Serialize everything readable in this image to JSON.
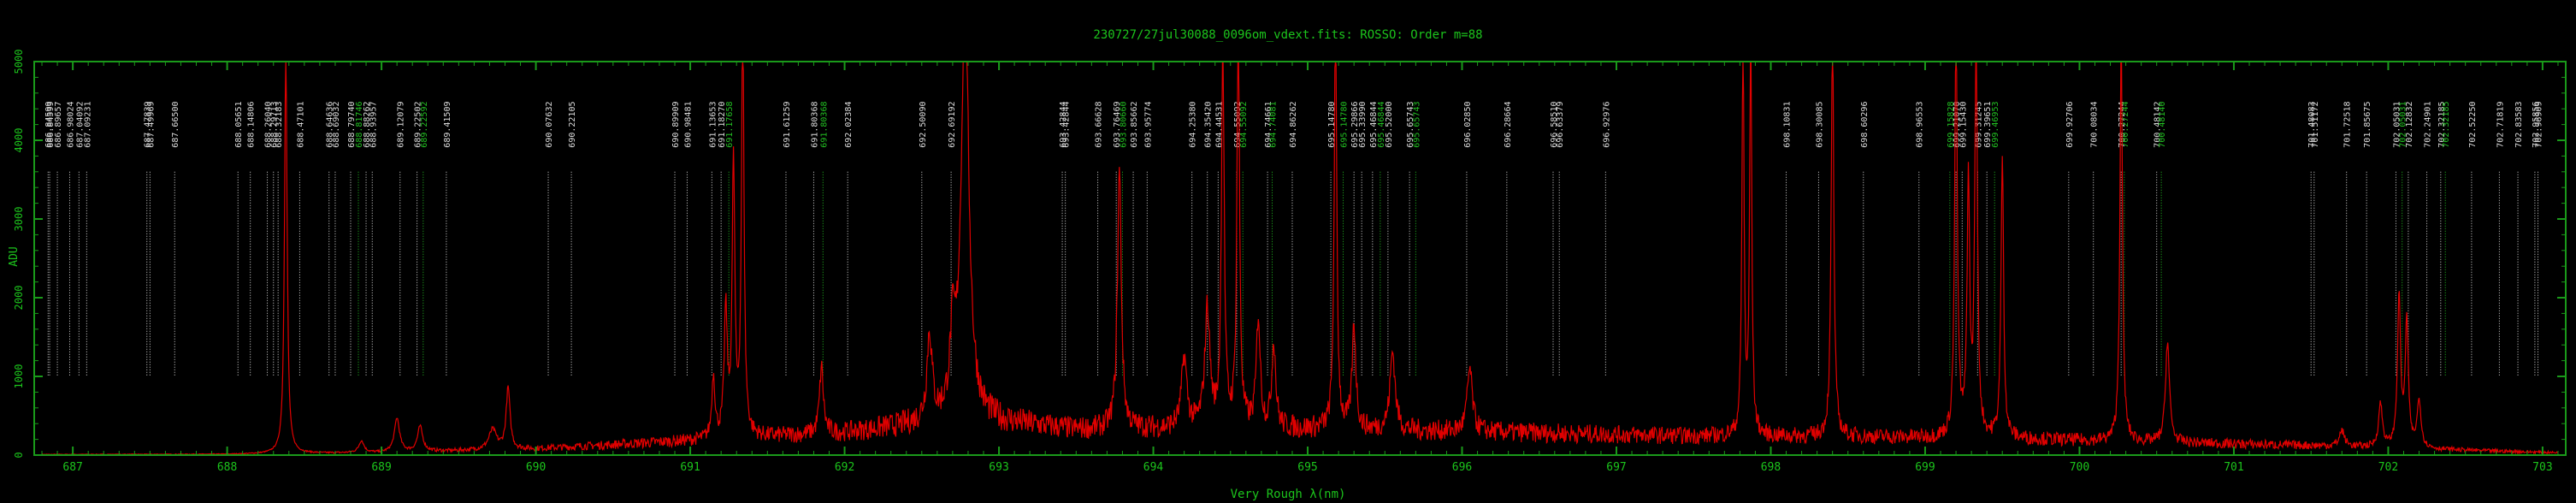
{
  "chart_data": {
    "type": "line",
    "title": "230727/27jul30088_0096om_vdext.fits: ROSSO: Order m=88",
    "xlabel": "Very Rough λ(nm)",
    "ylabel": "ADU",
    "xlim": [
      686.75,
      703.15
    ],
    "ylim": [
      0,
      5000
    ],
    "grid": false,
    "x_ticks": [
      687,
      688,
      689,
      690,
      691,
      692,
      693,
      694,
      695,
      696,
      697,
      698,
      699,
      700,
      701,
      702,
      703
    ],
    "y_ticks": [
      0,
      1000,
      2000,
      3000,
      4000,
      5000
    ],
    "colors": {
      "background": "#000000",
      "axes": "#1a9a1a",
      "text": "#1cc41c",
      "spectrum": "#e00000",
      "line_white": "#dcdcdc",
      "line_green": "#22c022"
    },
    "series": [
      {
        "baseline": [
          [
            686.8,
            8
          ],
          [
            688.0,
            10
          ],
          [
            689.0,
            30
          ],
          [
            690.0,
            80
          ],
          [
            691.0,
            180
          ],
          [
            692.0,
            280
          ],
          [
            692.8,
            450
          ],
          [
            693.5,
            320
          ],
          [
            694.5,
            340
          ],
          [
            695.5,
            310
          ],
          [
            696.5,
            280
          ],
          [
            697.5,
            240
          ],
          [
            698.5,
            230
          ],
          [
            699.5,
            210
          ],
          [
            700.5,
            160
          ],
          [
            701.5,
            120
          ],
          [
            702.5,
            60
          ],
          [
            703.1,
            30
          ]
        ],
        "peaks": [
          [
            688.38,
            5200,
            0.01
          ],
          [
            688.87,
            150,
            0.02
          ],
          [
            689.1,
            430,
            0.02
          ],
          [
            689.25,
            320,
            0.02
          ],
          [
            689.72,
            250,
            0.03
          ],
          [
            689.82,
            780,
            0.015
          ],
          [
            691.15,
            800,
            0.012
          ],
          [
            691.23,
            1600,
            0.012
          ],
          [
            691.28,
            3500,
            0.01
          ],
          [
            691.34,
            5200,
            0.01
          ],
          [
            691.85,
            850,
            0.015
          ],
          [
            692.55,
            1100,
            0.02
          ],
          [
            692.7,
            900,
            0.02
          ],
          [
            692.78,
            5300,
            0.03
          ],
          [
            693.78,
            3300,
            0.015
          ],
          [
            694.2,
            900,
            0.02
          ],
          [
            694.35,
            1500,
            0.02
          ],
          [
            694.45,
            5200,
            0.01
          ],
          [
            694.55,
            5200,
            0.01
          ],
          [
            694.68,
            1400,
            0.015
          ],
          [
            694.78,
            1100,
            0.015
          ],
          [
            695.18,
            5200,
            0.01
          ],
          [
            695.3,
            1300,
            0.015
          ],
          [
            695.55,
            1000,
            0.02
          ],
          [
            696.05,
            800,
            0.02
          ],
          [
            697.82,
            5200,
            0.008
          ],
          [
            697.87,
            5200,
            0.008
          ],
          [
            698.4,
            5200,
            0.01
          ],
          [
            699.2,
            5200,
            0.01
          ],
          [
            699.28,
            3200,
            0.01
          ],
          [
            699.33,
            5200,
            0.01
          ],
          [
            699.5,
            3600,
            0.01
          ],
          [
            700.27,
            5000,
            0.01
          ],
          [
            700.57,
            1300,
            0.015
          ],
          [
            701.7,
            200,
            0.02
          ],
          [
            701.95,
            550,
            0.015
          ],
          [
            702.07,
            1900,
            0.012
          ],
          [
            702.12,
            1600,
            0.012
          ],
          [
            702.2,
            600,
            0.015
          ]
        ]
      }
    ],
    "line_identifications": [
      {
        "x": 686.84,
        "label": "686.84599",
        "color": "white"
      },
      {
        "x": 686.85,
        "label": "686.84599",
        "color": "white"
      },
      {
        "x": 686.9,
        "label": "686.89657",
        "color": "white"
      },
      {
        "x": 686.98,
        "label": "686.98024",
        "color": "white"
      },
      {
        "x": 687.04,
        "label": "687.04092",
        "color": "white"
      },
      {
        "x": 687.09,
        "label": "687.09231",
        "color": "white"
      },
      {
        "x": 687.48,
        "label": "687.47839",
        "color": "white"
      },
      {
        "x": 687.5,
        "label": "687.49969",
        "color": "white"
      },
      {
        "x": 687.66,
        "label": "687.66500",
        "color": "white"
      },
      {
        "x": 688.07,
        "label": "688.05651",
        "color": "white"
      },
      {
        "x": 688.15,
        "label": "688.14806",
        "color": "white"
      },
      {
        "x": 688.26,
        "label": "688.26040",
        "color": "white"
      },
      {
        "x": 688.3,
        "label": "688.29713",
        "color": "white"
      },
      {
        "x": 688.33,
        "label": "688.32183",
        "color": "white"
      },
      {
        "x": 688.47,
        "label": "688.47101",
        "color": "white"
      },
      {
        "x": 688.66,
        "label": "688.64636",
        "color": "white"
      },
      {
        "x": 688.7,
        "label": "688.69032",
        "color": "white"
      },
      {
        "x": 688.8,
        "label": "688.79740",
        "color": "white"
      },
      {
        "x": 688.85,
        "label": "688.81746",
        "color": "green"
      },
      {
        "x": 688.9,
        "label": "688.88262",
        "color": "white"
      },
      {
        "x": 688.94,
        "label": "688.93957",
        "color": "white"
      },
      {
        "x": 689.12,
        "label": "689.12079",
        "color": "white"
      },
      {
        "x": 689.23,
        "label": "689.22502",
        "color": "white"
      },
      {
        "x": 689.27,
        "label": "689.22592",
        "color": "green"
      },
      {
        "x": 689.42,
        "label": "689.41509",
        "color": "white"
      },
      {
        "x": 690.08,
        "label": "690.07632",
        "color": "white"
      },
      {
        "x": 690.23,
        "label": "690.22105",
        "color": "white"
      },
      {
        "x": 690.9,
        "label": "690.89909",
        "color": "white"
      },
      {
        "x": 690.98,
        "label": "690.98481",
        "color": "white"
      },
      {
        "x": 691.14,
        "label": "691.13653",
        "color": "white"
      },
      {
        "x": 691.2,
        "label": "691.18270",
        "color": "white"
      },
      {
        "x": 691.25,
        "label": "691.17658",
        "color": "green"
      },
      {
        "x": 691.62,
        "label": "691.61259",
        "color": "white"
      },
      {
        "x": 691.8,
        "label": "691.80368",
        "color": "white"
      },
      {
        "x": 691.86,
        "label": "691.80368",
        "color": "green"
      },
      {
        "x": 692.02,
        "label": "692.02384",
        "color": "white"
      },
      {
        "x": 692.5,
        "label": "692.50090",
        "color": "white"
      },
      {
        "x": 692.69,
        "label": "692.69192",
        "color": "white"
      },
      {
        "x": 693.41,
        "label": "693.42844",
        "color": "white"
      },
      {
        "x": 693.43,
        "label": "693.42844",
        "color": "white"
      },
      {
        "x": 693.64,
        "label": "693.66628",
        "color": "white"
      },
      {
        "x": 693.76,
        "label": "693.76469",
        "color": "white"
      },
      {
        "x": 693.8,
        "label": "693.80660",
        "color": "green"
      },
      {
        "x": 693.87,
        "label": "693.85662",
        "color": "white"
      },
      {
        "x": 693.96,
        "label": "693.95774",
        "color": "white"
      },
      {
        "x": 694.25,
        "label": "694.25380",
        "color": "white"
      },
      {
        "x": 694.35,
        "label": "694.35420",
        "color": "white"
      },
      {
        "x": 694.42,
        "label": "694.44531",
        "color": "white"
      },
      {
        "x": 694.54,
        "label": "694.55092",
        "color": "white"
      },
      {
        "x": 694.58,
        "label": "694.55092",
        "color": "green"
      },
      {
        "x": 694.74,
        "label": "694.74661",
        "color": "white"
      },
      {
        "x": 694.77,
        "label": "694.74081",
        "color": "green"
      },
      {
        "x": 694.9,
        "label": "694.86262",
        "color": "white"
      },
      {
        "x": 695.15,
        "label": "695.14780",
        "color": "white"
      },
      {
        "x": 695.23,
        "label": "695.14780",
        "color": "green"
      },
      {
        "x": 695.3,
        "label": "695.29866",
        "color": "white"
      },
      {
        "x": 695.35,
        "label": "695.33990",
        "color": "white"
      },
      {
        "x": 695.42,
        "label": "695.46844",
        "color": "white"
      },
      {
        "x": 695.47,
        "label": "695.46844",
        "color": "green"
      },
      {
        "x": 695.52,
        "label": "695.52000",
        "color": "white"
      },
      {
        "x": 695.66,
        "label": "695.65743",
        "color": "white"
      },
      {
        "x": 695.7,
        "label": "695.65743",
        "color": "green"
      },
      {
        "x": 696.03,
        "label": "696.02850",
        "color": "white"
      },
      {
        "x": 696.29,
        "label": "696.28664",
        "color": "white"
      },
      {
        "x": 696.59,
        "label": "696.58510",
        "color": "white"
      },
      {
        "x": 696.63,
        "label": "696.63379",
        "color": "white"
      },
      {
        "x": 696.93,
        "label": "696.92976",
        "color": "white"
      },
      {
        "x": 698.1,
        "label": "698.10831",
        "color": "white"
      },
      {
        "x": 698.31,
        "label": "698.30085",
        "color": "white"
      },
      {
        "x": 698.6,
        "label": "698.60296",
        "color": "white"
      },
      {
        "x": 698.96,
        "label": "698.96553",
        "color": "white"
      },
      {
        "x": 699.16,
        "label": "699.15828",
        "color": "green"
      },
      {
        "x": 699.2,
        "label": "699.21070",
        "color": "white"
      },
      {
        "x": 699.24,
        "label": "699.15430",
        "color": "white"
      },
      {
        "x": 699.34,
        "label": "699.31245",
        "color": "white"
      },
      {
        "x": 699.4,
        "label": "699.39651",
        "color": "white"
      },
      {
        "x": 699.45,
        "label": "699.46953",
        "color": "green"
      },
      {
        "x": 699.93,
        "label": "699.92706",
        "color": "white"
      },
      {
        "x": 700.09,
        "label": "700.08034",
        "color": "white"
      },
      {
        "x": 700.27,
        "label": "700.27244",
        "color": "white"
      },
      {
        "x": 700.29,
        "label": "700.27244",
        "color": "green"
      },
      {
        "x": 700.5,
        "label": "700.48142",
        "color": "white"
      },
      {
        "x": 700.53,
        "label": "700.48140",
        "color": "green"
      },
      {
        "x": 701.5,
        "label": "701.48083",
        "color": "white"
      },
      {
        "x": 701.52,
        "label": "701.51172",
        "color": "white"
      },
      {
        "x": 701.73,
        "label": "701.72518",
        "color": "white"
      },
      {
        "x": 701.86,
        "label": "701.85675",
        "color": "white"
      },
      {
        "x": 702.05,
        "label": "702.05031",
        "color": "white"
      },
      {
        "x": 702.09,
        "label": "702.05031",
        "color": "green"
      },
      {
        "x": 702.13,
        "label": "702.12832",
        "color": "white"
      },
      {
        "x": 702.25,
        "label": "702.24901",
        "color": "white"
      },
      {
        "x": 702.34,
        "label": "702.32185",
        "color": "white"
      },
      {
        "x": 702.37,
        "label": "702.32185",
        "color": "green"
      },
      {
        "x": 702.54,
        "label": "702.52250",
        "color": "white"
      },
      {
        "x": 702.72,
        "label": "702.71819",
        "color": "white"
      },
      {
        "x": 702.84,
        "label": "702.83583",
        "color": "white"
      },
      {
        "x": 702.95,
        "label": "702.95856",
        "color": "white"
      },
      {
        "x": 702.97,
        "label": "702.96909",
        "color": "white"
      }
    ]
  }
}
